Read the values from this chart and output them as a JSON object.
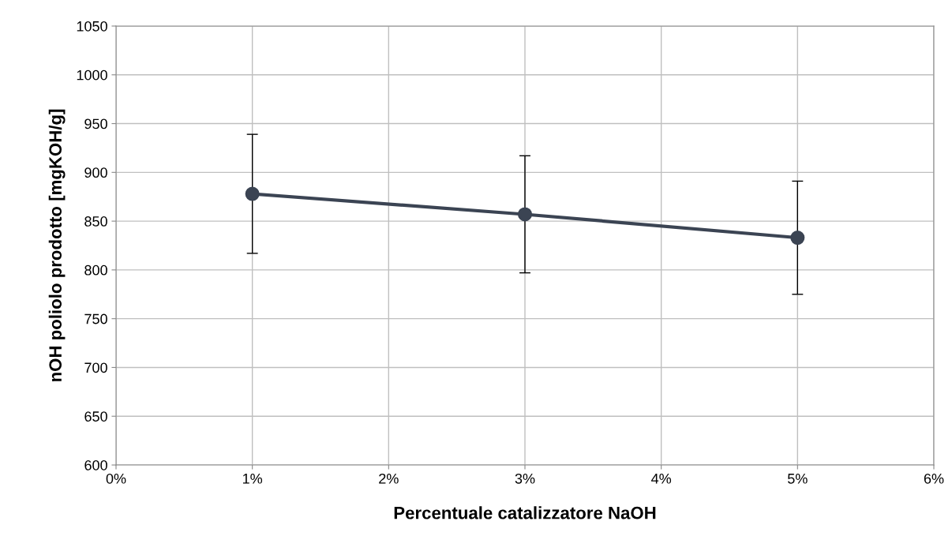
{
  "chart_data": {
    "type": "line",
    "xlabel": "Percentuale catalizzatore NaOH",
    "ylabel": "nOH poliolo prodotto [mgKOH/g]",
    "x": [
      1,
      3,
      5
    ],
    "series": [
      {
        "color": "#3b4453",
        "values": [
          878,
          857,
          833
        ],
        "errors": [
          61,
          60,
          58
        ]
      }
    ],
    "xlim": [
      0,
      6
    ],
    "xticks": [
      {
        "value": 0,
        "label": "0%"
      },
      {
        "value": 1,
        "label": "1%"
      },
      {
        "value": 2,
        "label": "2%"
      },
      {
        "value": 3,
        "label": "3%"
      },
      {
        "value": 4,
        "label": "4%"
      },
      {
        "value": 5,
        "label": "5%"
      },
      {
        "value": 6,
        "label": "6%"
      }
    ],
    "ylim": [
      600,
      1050
    ],
    "yticks": [
      600,
      650,
      700,
      750,
      800,
      850,
      900,
      950,
      1000,
      1050
    ],
    "grid": true,
    "marker": "circle",
    "line_style": "solid",
    "legend": false
  }
}
